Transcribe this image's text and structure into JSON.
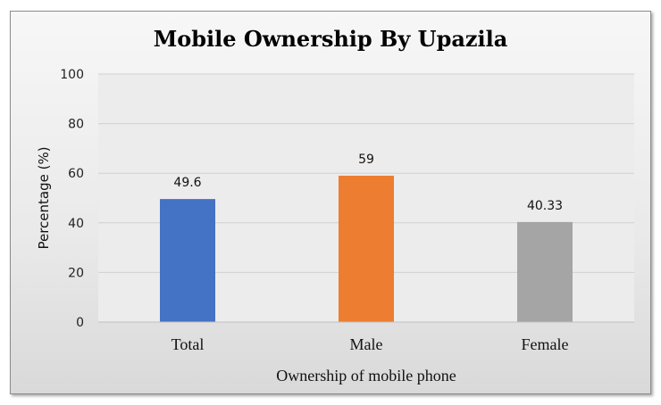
{
  "chart_data": {
    "type": "bar",
    "title": "Mobile Ownership By Upazila",
    "xlabel": "Ownership of mobile phone",
    "ylabel": "Percentage (%)",
    "categories": [
      "Total",
      "Male",
      "Female"
    ],
    "values": [
      49.6,
      59,
      40.33
    ],
    "data_labels": [
      "49.6",
      "59",
      "40.33"
    ],
    "colors": [
      "#4472c4",
      "#ed7d31",
      "#a5a5a5"
    ],
    "ylim": [
      0,
      100
    ],
    "yticks": [
      0,
      20,
      40,
      60,
      80,
      100
    ],
    "grid": true,
    "legend": "none"
  }
}
